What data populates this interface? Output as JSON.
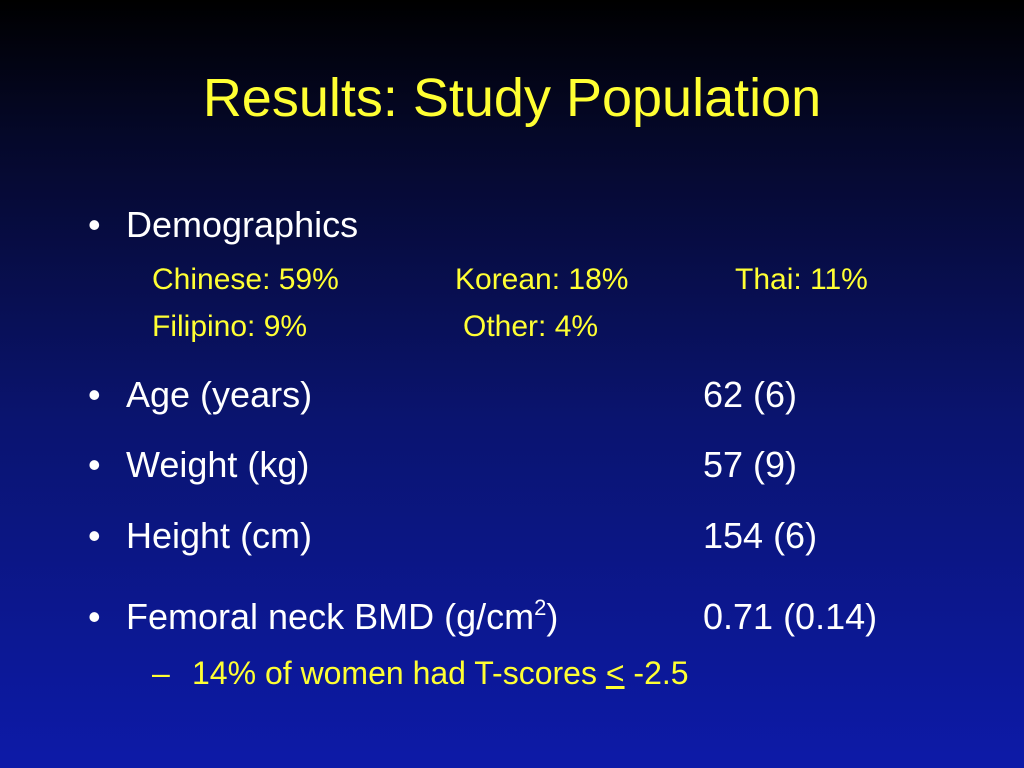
{
  "title": "Results: Study Population",
  "bullet_symbol": "•",
  "demographics": {
    "label": "Demographics",
    "groups": [
      {
        "text": "Chinese: 59%"
      },
      {
        "text": "Korean: 18%"
      },
      {
        "text": "Thai: 11%"
      },
      {
        "text": "Filipino: 9%"
      },
      {
        "text": "Other: 4%"
      }
    ]
  },
  "rows": [
    {
      "label": "Age (years)",
      "value": "62 (6)"
    },
    {
      "label": "Weight (kg)",
      "value": "57 (9)"
    },
    {
      "label": "Height (cm)",
      "value": "154 (6)"
    }
  ],
  "bmd": {
    "label_pre": "Femoral neck BMD (g/cm",
    "label_sup": "2",
    "label_post": ")",
    "value": "0.71 (0.14)"
  },
  "tscore_note": {
    "dash": "–",
    "text_pre": "14% of women had T-scores ",
    "symbol": "<",
    "text_post": " -2.5"
  },
  "colors": {
    "title": "#ffff33",
    "body_text": "#ffffff",
    "sub_text": "#ffff33",
    "background_top": "#000000",
    "background_bottom": "#0d1aa8"
  }
}
